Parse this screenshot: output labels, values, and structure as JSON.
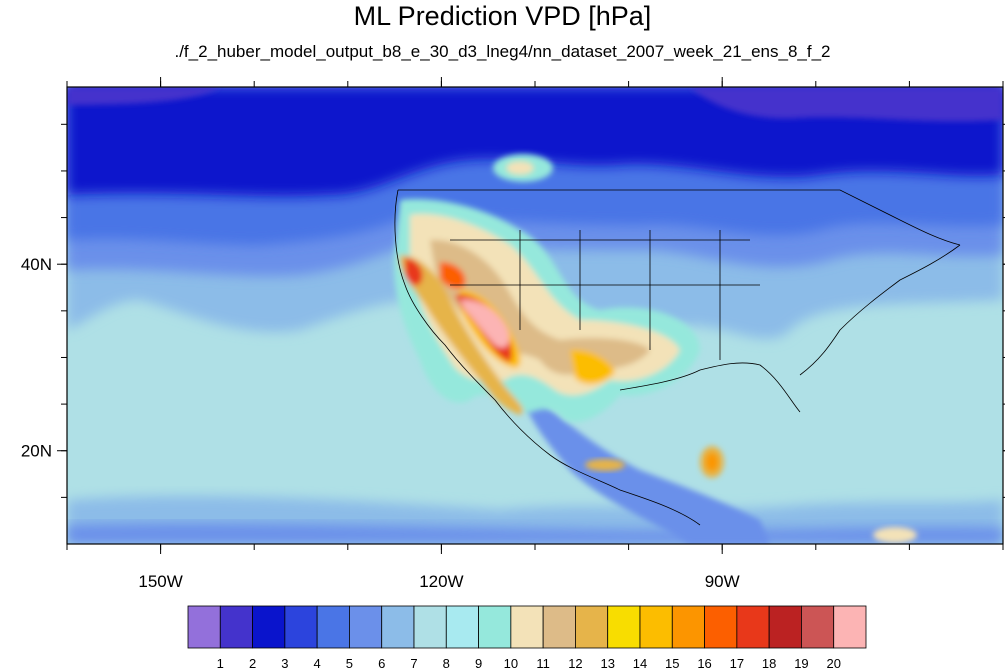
{
  "title": "ML Prediction VPD [hPa]",
  "subtitle": "./f_2_huber_model_output_b8_e_30_d3_lneg4/nn_dataset_2007_week_21_ens_8_f_2",
  "map": {
    "projection": "cylindrical-equidistant",
    "lon_range": [
      -160,
      -60
    ],
    "lat_range": [
      10,
      59
    ],
    "lon_ticks": [
      {
        "value": -150,
        "label": "150W"
      },
      {
        "value": -120,
        "label": "120W"
      },
      {
        "value": -90,
        "label": "90W"
      }
    ],
    "lat_ticks": [
      {
        "value": 40,
        "label": "40N"
      },
      {
        "value": 20,
        "label": "20N"
      }
    ]
  },
  "colorbar": {
    "labels": [
      "1",
      "2",
      "3",
      "4",
      "5",
      "6",
      "7",
      "8",
      "9",
      "10",
      "11",
      "12",
      "13",
      "14",
      "15",
      "16",
      "17",
      "18",
      "19",
      "20"
    ],
    "colors": [
      "#9370db",
      "#4433cc",
      "#0a14cc",
      "#2c44dd",
      "#4a75e6",
      "#6b90ea",
      "#8cbce8",
      "#afe0e6",
      "#a8eaf0",
      "#95e8dc",
      "#f3e2b8",
      "#ddbb88",
      "#e6b44a",
      "#f8dd00",
      "#fcbd00",
      "#fc9500",
      "#fc5f00",
      "#e8381a",
      "#bb2222",
      "#cc5555",
      "#fcb4b4"
    ]
  }
}
